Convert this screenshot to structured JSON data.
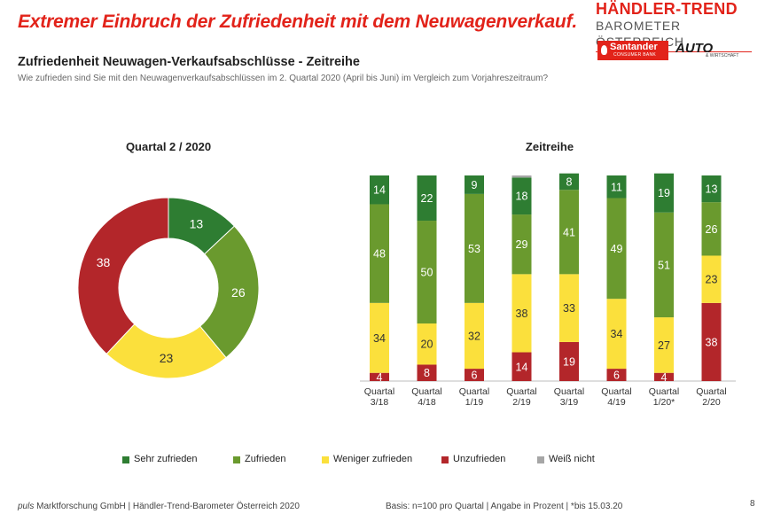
{
  "header": {
    "headline": "Extremer Einbruch der Zufriedenheit mit dem Neuwagenverkauf.",
    "brand_title": "HÄNDLER-TREND",
    "brand_subtitle": "BAROMETER ÖSTERREICH",
    "sponsor_name": "Santander",
    "sponsor_sub": "CONSUMER BANK",
    "partner_name": "AUTO",
    "partner_sub": "& WIRTSCHAFT",
    "accent_color": "#e2231a"
  },
  "subtitle": "Zufriedenheit Neuwagen-Verkaufsabschlüsse - Zeitreihe",
  "question": "Wie zufrieden sind Sie mit den Neuwagenverkaufsabschlüssen im 2. Quartal 2020 (April bis Juni) im Vergleich zum Vorjahreszeitraum?",
  "colors": {
    "sehr_zufrieden": "#2e7d32",
    "zufrieden": "#6a9a2e",
    "weniger_zufrieden": "#fbe03c",
    "unzufrieden": "#b3262a",
    "weiss_nicht": "#a6a6a6"
  },
  "chart_data": [
    {
      "type": "pie",
      "title": "Quartal 2 / 2020",
      "labels": [
        "Sehr zufrieden",
        "Zufrieden",
        "Weniger zufrieden",
        "Unzufrieden"
      ],
      "values": [
        13,
        26,
        23,
        38
      ]
    },
    {
      "type": "bar",
      "stacked": true,
      "title": "Zeitreihe",
      "categories": [
        "Quartal\n3/18",
        "Quartal\n4/18",
        "Quartal\n1/19",
        "Quartal\n2/19",
        "Quartal\n3/19",
        "Quartal\n4/19",
        "Quartal\n1/20*",
        "Quartal\n2/20"
      ],
      "series": [
        {
          "name": "Unzufrieden",
          "values": [
            4,
            8,
            6,
            14,
            19,
            6,
            4,
            38
          ]
        },
        {
          "name": "Weniger zufrieden",
          "values": [
            34,
            20,
            32,
            38,
            33,
            34,
            27,
            23
          ]
        },
        {
          "name": "Zufrieden",
          "values": [
            48,
            50,
            53,
            29,
            41,
            49,
            51,
            26
          ]
        },
        {
          "name": "Sehr zufrieden",
          "values": [
            14,
            22,
            9,
            18,
            8,
            11,
            19,
            13
          ]
        },
        {
          "name": "Weiß nicht",
          "values": [
            0,
            0,
            0,
            1,
            0,
            0,
            0,
            0
          ]
        }
      ],
      "ylim": [
        0,
        100
      ]
    }
  ],
  "legend": [
    {
      "label": "Sehr zufrieden",
      "color_key": "sehr_zufrieden"
    },
    {
      "label": "Zufrieden",
      "color_key": "zufrieden"
    },
    {
      "label": "Weniger zufrieden",
      "color_key": "weniger_zufrieden"
    },
    {
      "label": "Unzufrieden",
      "color_key": "unzufrieden"
    },
    {
      "label": "Weiß nicht",
      "color_key": "weiss_nicht"
    }
  ],
  "footer": {
    "company_italic": "puls",
    "company_rest": " Marktforschung GmbH | Händler-Trend-Barometer Österreich 2020",
    "basis": "Basis: n=100 pro Quartal | Angabe in Prozent | *bis 15.03.20",
    "page_number": "8"
  }
}
